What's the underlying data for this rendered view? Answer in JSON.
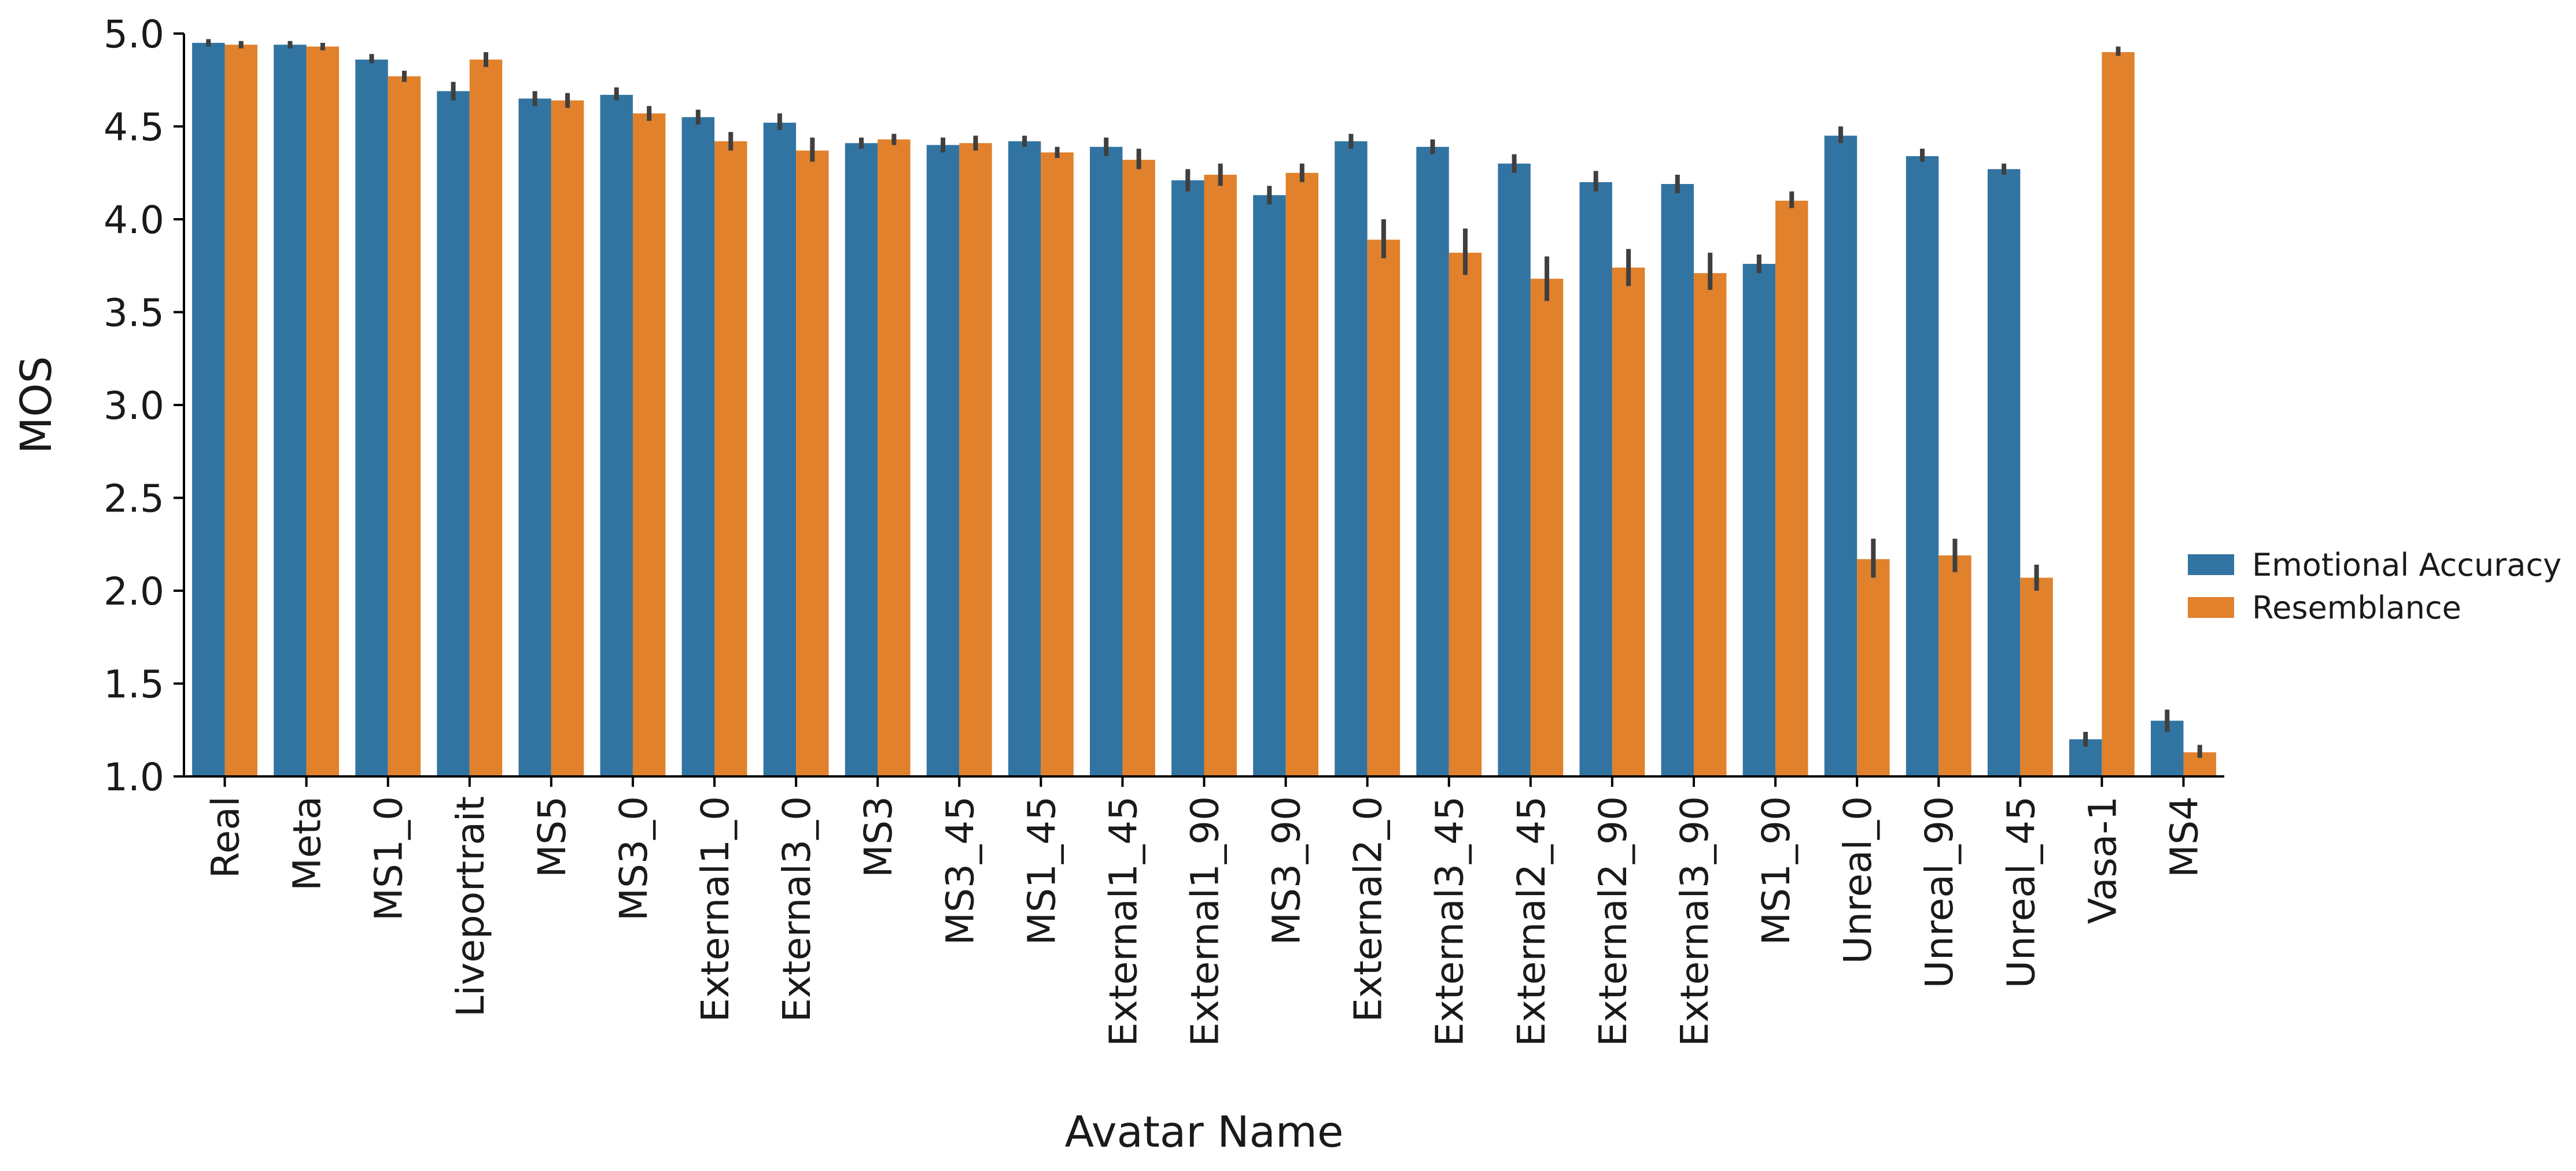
{
  "chart_data": {
    "type": "bar",
    "xlabel": "Avatar Name",
    "ylabel": "MOS",
    "ylim": [
      1.0,
      5.0
    ],
    "yticks": [
      "1.0",
      "1.5",
      "2.0",
      "2.5",
      "3.0",
      "3.5",
      "4.0",
      "4.5",
      "5.0"
    ],
    "grid": false,
    "legend_placement": "center-right",
    "categories": [
      "Real",
      "Meta",
      "MS1_0",
      "Liveportrait",
      "MS5",
      "MS3_0",
      "External1_0",
      "External3_0",
      "MS3",
      "MS3_45",
      "MS1_45",
      "External1_45",
      "External1_90",
      "MS3_90",
      "External2_0",
      "External3_45",
      "External2_45",
      "External2_90",
      "External3_90",
      "MS1_90",
      "Unreal_0",
      "Unreal_90",
      "Unreal_45",
      "Vasa-1",
      "MS4"
    ],
    "series": [
      {
        "name": "Emotional Accuracy",
        "color": "#3274a1",
        "values": [
          4.95,
          4.94,
          4.86,
          4.69,
          4.65,
          4.67,
          4.55,
          4.52,
          4.41,
          4.4,
          4.42,
          4.39,
          4.21,
          4.13,
          4.42,
          4.39,
          4.3,
          4.2,
          4.19,
          3.76,
          4.45,
          4.34,
          4.27,
          1.2,
          1.3
        ],
        "ci_low": [
          4.93,
          4.92,
          4.84,
          4.64,
          4.61,
          4.64,
          4.51,
          4.48,
          4.38,
          4.36,
          4.39,
          4.34,
          4.15,
          4.08,
          4.38,
          4.35,
          4.25,
          4.15,
          4.14,
          3.71,
          4.41,
          4.31,
          4.24,
          1.16,
          1.24
        ],
        "ci_high": [
          4.97,
          4.96,
          4.89,
          4.74,
          4.69,
          4.71,
          4.59,
          4.57,
          4.44,
          4.44,
          4.45,
          4.44,
          4.27,
          4.18,
          4.46,
          4.43,
          4.35,
          4.26,
          4.24,
          3.81,
          4.5,
          4.38,
          4.3,
          1.24,
          1.36
        ]
      },
      {
        "name": "Resemblance",
        "color": "#e1812c",
        "values": [
          4.94,
          4.93,
          4.77,
          4.86,
          4.64,
          4.57,
          4.42,
          4.37,
          4.43,
          4.41,
          4.36,
          4.32,
          4.24,
          4.25,
          3.89,
          3.82,
          3.68,
          3.74,
          3.71,
          4.1,
          2.17,
          2.19,
          2.07,
          4.9,
          1.13
        ],
        "ci_low": [
          4.92,
          4.91,
          4.74,
          4.82,
          4.6,
          4.53,
          4.37,
          4.31,
          4.4,
          4.37,
          4.33,
          4.27,
          4.18,
          4.2,
          3.79,
          3.7,
          3.56,
          3.64,
          3.62,
          4.06,
          2.07,
          2.1,
          2.0,
          4.88,
          1.1
        ],
        "ci_high": [
          4.96,
          4.95,
          4.8,
          4.9,
          4.68,
          4.61,
          4.47,
          4.44,
          4.46,
          4.45,
          4.39,
          4.38,
          4.3,
          4.3,
          4.0,
          3.95,
          3.8,
          3.84,
          3.82,
          4.15,
          2.28,
          2.28,
          2.14,
          4.93,
          1.17
        ]
      }
    ]
  }
}
